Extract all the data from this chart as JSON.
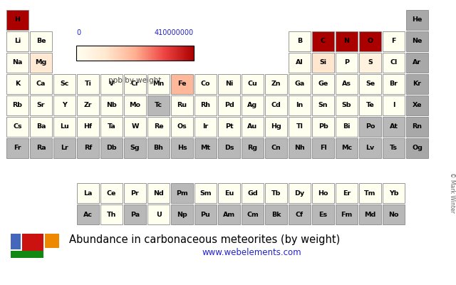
{
  "title": "Abundance in carbonaceous meteorites (by weight)",
  "url": "www.webelements.com",
  "colorbar_label": "ppb by weight",
  "colorbar_min": 0,
  "colorbar_max": 410000000,
  "colorbar_label_min": "0",
  "colorbar_label_max": "410000000",
  "background_color": "#ffffff",
  "default_color": "#b0b0b0",
  "noble_color": "#a0a0a0",
  "elements": [
    {
      "symbol": "H",
      "row": 1,
      "col": 1,
      "value": 24000000000,
      "noble": false
    },
    {
      "symbol": "He",
      "row": 1,
      "col": 18,
      "value": null,
      "noble": true
    },
    {
      "symbol": "Li",
      "row": 2,
      "col": 1,
      "value": 3570000,
      "noble": false
    },
    {
      "symbol": "Be",
      "row": 2,
      "col": 2,
      "value": 250000,
      "noble": false
    },
    {
      "symbol": "B",
      "row": 2,
      "col": 13,
      "value": 1000000,
      "noble": false
    },
    {
      "symbol": "C",
      "row": 2,
      "col": 14,
      "value": 35000000000,
      "noble": false
    },
    {
      "symbol": "N",
      "row": 2,
      "col": 15,
      "value": 3180000000,
      "noble": false
    },
    {
      "symbol": "O",
      "row": 2,
      "col": 16,
      "value": 410000000,
      "noble": false
    },
    {
      "symbol": "F",
      "row": 2,
      "col": 17,
      "value": 100000,
      "noble": false
    },
    {
      "symbol": "Ne",
      "row": 2,
      "col": 18,
      "value": null,
      "noble": true
    },
    {
      "symbol": "Na",
      "row": 3,
      "col": 1,
      "value": 5000000,
      "noble": false
    },
    {
      "symbol": "Mg",
      "row": 3,
      "col": 2,
      "value": 97200000,
      "noble": false
    },
    {
      "symbol": "Al",
      "row": 3,
      "col": 13,
      "value": 8500000,
      "noble": false
    },
    {
      "symbol": "Si",
      "row": 3,
      "col": 14,
      "value": 106000000,
      "noble": false
    },
    {
      "symbol": "P",
      "row": 3,
      "col": 15,
      "value": 1220000,
      "noble": false
    },
    {
      "symbol": "S",
      "row": 3,
      "col": 16,
      "value": 53000000,
      "noble": false
    },
    {
      "symbol": "Cl",
      "row": 3,
      "col": 17,
      "value": 700000,
      "noble": false
    },
    {
      "symbol": "Ar",
      "row": 3,
      "col": 18,
      "value": null,
      "noble": true
    },
    {
      "symbol": "K",
      "row": 4,
      "col": 1,
      "value": 550000,
      "noble": false
    },
    {
      "symbol": "Ca",
      "row": 4,
      "col": 2,
      "value": 9100000,
      "noble": false
    },
    {
      "symbol": "Sc",
      "row": 4,
      "col": 3,
      "value": 5900,
      "noble": false
    },
    {
      "symbol": "Ti",
      "row": 4,
      "col": 4,
      "value": 440000,
      "noble": false
    },
    {
      "symbol": "V",
      "row": 4,
      "col": 5,
      "value": 56000,
      "noble": false
    },
    {
      "symbol": "Cr",
      "row": 4,
      "col": 6,
      "value": 2660000,
      "noble": false
    },
    {
      "symbol": "Mn",
      "row": 4,
      "col": 7,
      "value": 1990000,
      "noble": false
    },
    {
      "symbol": "Fe",
      "row": 4,
      "col": 8,
      "value": 191000000,
      "noble": false
    },
    {
      "symbol": "Co",
      "row": 4,
      "col": 9,
      "value": 502000,
      "noble": false
    },
    {
      "symbol": "Ni",
      "row": 4,
      "col": 10,
      "value": 11000000,
      "noble": false
    },
    {
      "symbol": "Cu",
      "row": 4,
      "col": 11,
      "value": 126000,
      "noble": false
    },
    {
      "symbol": "Zn",
      "row": 4,
      "col": 12,
      "value": 312000,
      "noble": false
    },
    {
      "symbol": "Ga",
      "row": 4,
      "col": 13,
      "value": 9700,
      "noble": false
    },
    {
      "symbol": "Ge",
      "row": 4,
      "col": 14,
      "value": 32600,
      "noble": false
    },
    {
      "symbol": "As",
      "row": 4,
      "col": 15,
      "value": 1860,
      "noble": false
    },
    {
      "symbol": "Se",
      "row": 4,
      "col": 16,
      "value": 21300,
      "noble": false
    },
    {
      "symbol": "Br",
      "row": 4,
      "col": 17,
      "value": 3570,
      "noble": false
    },
    {
      "symbol": "Kr",
      "row": 4,
      "col": 18,
      "value": null,
      "noble": true
    },
    {
      "symbol": "Rb",
      "row": 5,
      "col": 1,
      "value": 2300,
      "noble": false
    },
    {
      "symbol": "Sr",
      "row": 5,
      "col": 2,
      "value": 7800,
      "noble": false
    },
    {
      "symbol": "Y",
      "row": 5,
      "col": 3,
      "value": 1560,
      "noble": false
    },
    {
      "symbol": "Zr",
      "row": 5,
      "col": 4,
      "value": 3900,
      "noble": false
    },
    {
      "symbol": "Nb",
      "row": 5,
      "col": 5,
      "value": 246,
      "noble": false
    },
    {
      "symbol": "Mo",
      "row": 5,
      "col": 6,
      "value": 92600,
      "noble": false
    },
    {
      "symbol": "Tc",
      "row": 5,
      "col": 7,
      "value": null,
      "noble": false
    },
    {
      "symbol": "Ru",
      "row": 5,
      "col": 8,
      "value": 683,
      "noble": false
    },
    {
      "symbol": "Rh",
      "row": 5,
      "col": 9,
      "value": 140,
      "noble": false
    },
    {
      "symbol": "Pd",
      "row": 5,
      "col": 10,
      "value": 560,
      "noble": false
    },
    {
      "symbol": "Ag",
      "row": 5,
      "col": 11,
      "value": 199,
      "noble": false
    },
    {
      "symbol": "Cd",
      "row": 5,
      "col": 12,
      "value": 686,
      "noble": false
    },
    {
      "symbol": "In",
      "row": 5,
      "col": 13,
      "value": 80,
      "noble": false
    },
    {
      "symbol": "Sn",
      "row": 5,
      "col": 14,
      "value": 1720,
      "noble": false
    },
    {
      "symbol": "Sb",
      "row": 5,
      "col": 15,
      "value": 142,
      "noble": false
    },
    {
      "symbol": "Te",
      "row": 5,
      "col": 16,
      "value": 2320,
      "noble": false
    },
    {
      "symbol": "I",
      "row": 5,
      "col": 17,
      "value": 433,
      "noble": false
    },
    {
      "symbol": "Xe",
      "row": 5,
      "col": 18,
      "value": null,
      "noble": true
    },
    {
      "symbol": "Cs",
      "row": 6,
      "col": 1,
      "value": 187,
      "noble": false
    },
    {
      "symbol": "Ba",
      "row": 6,
      "col": 2,
      "value": 2400,
      "noble": false
    },
    {
      "symbol": "Lu",
      "row": 6,
      "col": 3,
      "value": 168,
      "noble": false
    },
    {
      "symbol": "Hf",
      "row": 6,
      "col": 4,
      "value": 154,
      "noble": false
    },
    {
      "symbol": "Ta",
      "row": 6,
      "col": 5,
      "value": 21,
      "noble": false
    },
    {
      "symbol": "W",
      "row": 6,
      "col": 6,
      "value": 93,
      "noble": false
    },
    {
      "symbol": "Re",
      "row": 6,
      "col": 7,
      "value": 40,
      "noble": false
    },
    {
      "symbol": "Os",
      "row": 6,
      "col": 8,
      "value": 486,
      "noble": false
    },
    {
      "symbol": "Ir",
      "row": 6,
      "col": 9,
      "value": 455,
      "noble": false
    },
    {
      "symbol": "Pt",
      "row": 6,
      "col": 10,
      "value": 1010,
      "noble": false
    },
    {
      "symbol": "Au",
      "row": 6,
      "col": 11,
      "value": 140,
      "noble": false
    },
    {
      "symbol": "Hg",
      "row": 6,
      "col": 12,
      "value": 258,
      "noble": false
    },
    {
      "symbol": "Tl",
      "row": 6,
      "col": 13,
      "value": 142,
      "noble": false
    },
    {
      "symbol": "Pb",
      "row": 6,
      "col": 14,
      "value": 2470,
      "noble": false
    },
    {
      "symbol": "Bi",
      "row": 6,
      "col": 15,
      "value": 110,
      "noble": false
    },
    {
      "symbol": "Po",
      "row": 6,
      "col": 16,
      "value": null,
      "noble": false
    },
    {
      "symbol": "At",
      "row": 6,
      "col": 17,
      "value": null,
      "noble": false
    },
    {
      "symbol": "Rn",
      "row": 6,
      "col": 18,
      "value": null,
      "noble": true
    },
    {
      "symbol": "Fr",
      "row": 7,
      "col": 1,
      "value": null,
      "noble": false
    },
    {
      "symbol": "Ra",
      "row": 7,
      "col": 2,
      "value": null,
      "noble": false
    },
    {
      "symbol": "Lr",
      "row": 7,
      "col": 3,
      "value": null,
      "noble": false
    },
    {
      "symbol": "Rf",
      "row": 7,
      "col": 4,
      "value": null,
      "noble": false
    },
    {
      "symbol": "Db",
      "row": 7,
      "col": 5,
      "value": null,
      "noble": false
    },
    {
      "symbol": "Sg",
      "row": 7,
      "col": 6,
      "value": null,
      "noble": false
    },
    {
      "symbol": "Bh",
      "row": 7,
      "col": 7,
      "value": null,
      "noble": false
    },
    {
      "symbol": "Hs",
      "row": 7,
      "col": 8,
      "value": null,
      "noble": false
    },
    {
      "symbol": "Mt",
      "row": 7,
      "col": 9,
      "value": null,
      "noble": false
    },
    {
      "symbol": "Ds",
      "row": 7,
      "col": 10,
      "value": null,
      "noble": false
    },
    {
      "symbol": "Rg",
      "row": 7,
      "col": 11,
      "value": null,
      "noble": false
    },
    {
      "symbol": "Cn",
      "row": 7,
      "col": 12,
      "value": null,
      "noble": false
    },
    {
      "symbol": "Nh",
      "row": 7,
      "col": 13,
      "value": null,
      "noble": false
    },
    {
      "symbol": "Fl",
      "row": 7,
      "col": 14,
      "value": null,
      "noble": false
    },
    {
      "symbol": "Mc",
      "row": 7,
      "col": 15,
      "value": null,
      "noble": false
    },
    {
      "symbol": "Lv",
      "row": 7,
      "col": 16,
      "value": null,
      "noble": false
    },
    {
      "symbol": "Ts",
      "row": 7,
      "col": 17,
      "value": null,
      "noble": false
    },
    {
      "symbol": "Og",
      "row": 7,
      "col": 18,
      "value": null,
      "noble": true
    },
    {
      "symbol": "La",
      "row": 9,
      "col": 4,
      "value": 2340,
      "noble": false
    },
    {
      "symbol": "Ce",
      "row": 9,
      "col": 5,
      "value": 6030,
      "noble": false
    },
    {
      "symbol": "Pr",
      "row": 9,
      "col": 6,
      "value": 910,
      "noble": false
    },
    {
      "symbol": "Nd",
      "row": 9,
      "col": 7,
      "value": 2990,
      "noble": false
    },
    {
      "symbol": "Pm",
      "row": 9,
      "col": 8,
      "value": null,
      "noble": false
    },
    {
      "symbol": "Sm",
      "row": 9,
      "col": 9,
      "value": 940,
      "noble": false
    },
    {
      "symbol": "Eu",
      "row": 9,
      "col": 10,
      "value": 350,
      "noble": false
    },
    {
      "symbol": "Gd",
      "row": 9,
      "col": 11,
      "value": 1050,
      "noble": false
    },
    {
      "symbol": "Tb",
      "row": 9,
      "col": 12,
      "value": 180,
      "noble": false
    },
    {
      "symbol": "Dy",
      "row": 9,
      "col": 13,
      "value": 1180,
      "noble": false
    },
    {
      "symbol": "Ho",
      "row": 9,
      "col": 14,
      "value": 270,
      "noble": false
    },
    {
      "symbol": "Er",
      "row": 9,
      "col": 15,
      "value": 770,
      "noble": false
    },
    {
      "symbol": "Tm",
      "row": 9,
      "col": 16,
      "value": 120,
      "noble": false
    },
    {
      "symbol": "Yb",
      "row": 9,
      "col": 17,
      "value": 830,
      "noble": false
    },
    {
      "symbol": "Ac",
      "row": 10,
      "col": 4,
      "value": null,
      "noble": false
    },
    {
      "symbol": "Th",
      "row": 10,
      "col": 5,
      "value": 40,
      "noble": false
    },
    {
      "symbol": "Pa",
      "row": 10,
      "col": 6,
      "value": null,
      "noble": false
    },
    {
      "symbol": "U",
      "row": 10,
      "col": 7,
      "value": 14,
      "noble": false
    },
    {
      "symbol": "Np",
      "row": 10,
      "col": 8,
      "value": null,
      "noble": false
    },
    {
      "symbol": "Pu",
      "row": 10,
      "col": 9,
      "value": null,
      "noble": false
    },
    {
      "symbol": "Am",
      "row": 10,
      "col": 10,
      "value": null,
      "noble": false
    },
    {
      "symbol": "Cm",
      "row": 10,
      "col": 11,
      "value": null,
      "noble": false
    },
    {
      "symbol": "Bk",
      "row": 10,
      "col": 12,
      "value": null,
      "noble": false
    },
    {
      "symbol": "Cf",
      "row": 10,
      "col": 13,
      "value": null,
      "noble": false
    },
    {
      "symbol": "Es",
      "row": 10,
      "col": 14,
      "value": null,
      "noble": false
    },
    {
      "symbol": "Fm",
      "row": 10,
      "col": 15,
      "value": null,
      "noble": false
    },
    {
      "symbol": "Md",
      "row": 10,
      "col": 16,
      "value": null,
      "noble": false
    },
    {
      "symbol": "No",
      "row": 10,
      "col": 17,
      "value": null,
      "noble": false
    }
  ],
  "legend_colors": [
    "#4466bb",
    "#cc1111",
    "#ee8800",
    "#118811"
  ]
}
